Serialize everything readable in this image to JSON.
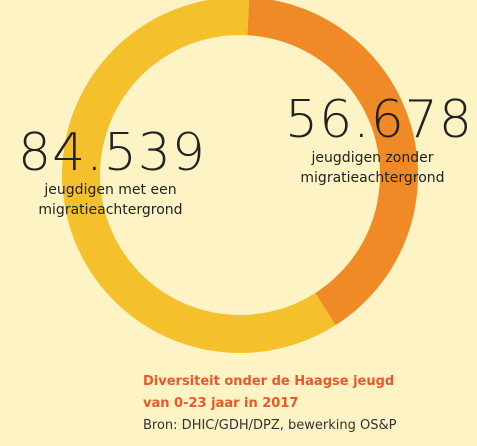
{
  "chart_data": {
    "type": "pie",
    "series": [
      {
        "name": "jeugdigen met een migratieachtergrond",
        "value": 84539,
        "value_label": "84.539",
        "color": "#f4c12d"
      },
      {
        "name": "jeugdigen zonder migratieachtergrond",
        "value": 56678,
        "value_label": "56.678",
        "color": "#ef8a27"
      }
    ],
    "donut": true,
    "caption": {
      "line1": "Diversiteit onder de Haagse jeugd",
      "line2": "van 0-23 jaar in 2017",
      "source": "Bron: DHIC/GDH/DPZ, bewerking OS&P"
    }
  }
}
